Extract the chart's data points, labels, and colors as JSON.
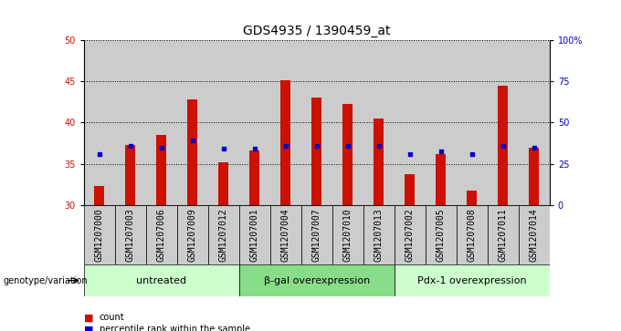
{
  "title": "GDS4935 / 1390459_at",
  "samples": [
    "GSM1207000",
    "GSM1207003",
    "GSM1207006",
    "GSM1207009",
    "GSM1207012",
    "GSM1207001",
    "GSM1207004",
    "GSM1207007",
    "GSM1207010",
    "GSM1207013",
    "GSM1207002",
    "GSM1207005",
    "GSM1207008",
    "GSM1207011",
    "GSM1207014"
  ],
  "counts": [
    32.3,
    37.3,
    38.5,
    42.8,
    35.2,
    36.6,
    45.1,
    43.0,
    42.2,
    40.5,
    33.8,
    36.2,
    31.8,
    44.4,
    36.9
  ],
  "percentile_vals": [
    36.2,
    37.2,
    37.0,
    37.8,
    36.8,
    36.8,
    37.2,
    37.2,
    37.2,
    37.2,
    36.2,
    36.5,
    36.2,
    37.2,
    36.9
  ],
  "groups": [
    {
      "label": "untreated",
      "start": 0,
      "end": 5
    },
    {
      "label": "β-gal overexpression",
      "start": 5,
      "end": 10
    },
    {
      "label": "Pdx-1 overexpression",
      "start": 10,
      "end": 15
    }
  ],
  "bar_color": "#cc1100",
  "marker_color": "#0000cc",
  "ylim_left": [
    30,
    50
  ],
  "ylim_right": [
    0,
    100
  ],
  "yticks_left": [
    30,
    35,
    40,
    45,
    50
  ],
  "yticks_right": [
    0,
    25,
    50,
    75,
    100
  ],
  "bg_color_bar": "#cccccc",
  "bg_color_group_light": "#ccffcc",
  "bg_color_group_dark": "#88dd88",
  "genotype_label": "genotype/variation",
  "legend_count": "count",
  "legend_percentile": "percentile rank within the sample",
  "title_fontsize": 10,
  "tick_fontsize": 7,
  "label_fontsize": 8
}
